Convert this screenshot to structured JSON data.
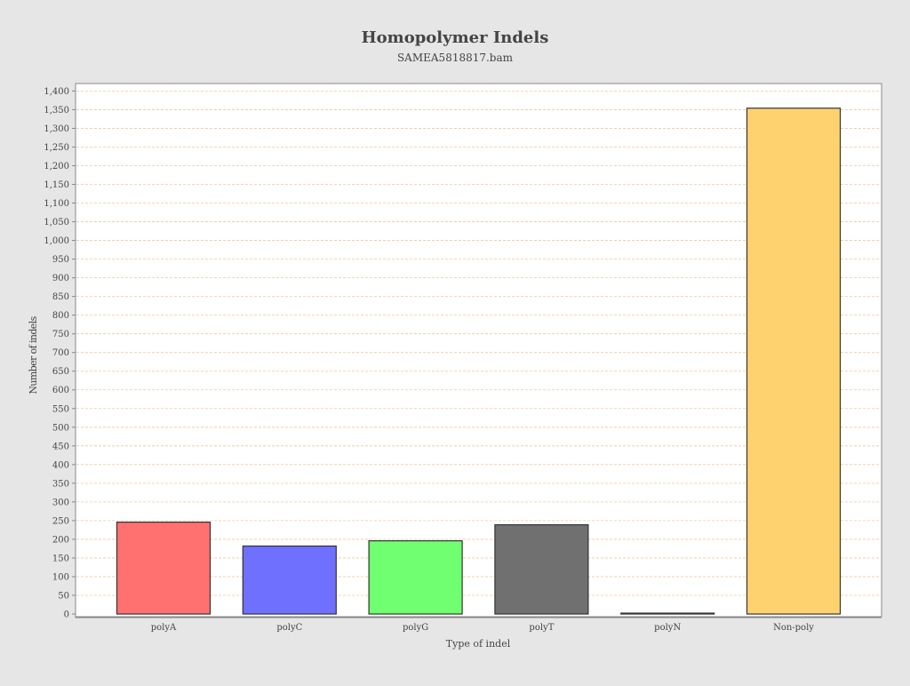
{
  "chart_data": {
    "type": "bar",
    "title": "Homopolymer Indels",
    "subtitle": "SAMEA5818817.bam",
    "xlabel": "Type of indel",
    "ylabel": "Number of indels",
    "categories": [
      "polyA",
      "polyC",
      "polyG",
      "polyT",
      "polyN",
      "Non-poly"
    ],
    "values": [
      246,
      182,
      196,
      239,
      1,
      1354
    ],
    "colors": [
      "#ff7070",
      "#7070ff",
      "#70ff70",
      "#707070",
      "#8c8c8c",
      "#ffd270"
    ],
    "ylim": [
      0,
      1420
    ],
    "y_tick_step": 50,
    "y_tick_labels": [
      "0",
      "50",
      "100",
      "150",
      "200",
      "250",
      "300",
      "350",
      "400",
      "450",
      "500",
      "550",
      "600",
      "650",
      "700",
      "750",
      "800",
      "850",
      "900",
      "950",
      "1,000",
      "1,050",
      "1,100",
      "1,150",
      "1,200",
      "1,250",
      "1,300",
      "1,350",
      "1,400"
    ],
    "grid": true,
    "gridline_color": "#f0c8a0",
    "bar_outline_color": "#333333",
    "background_color": "#e6e6e6",
    "plot_background_color": "#ffffff"
  }
}
